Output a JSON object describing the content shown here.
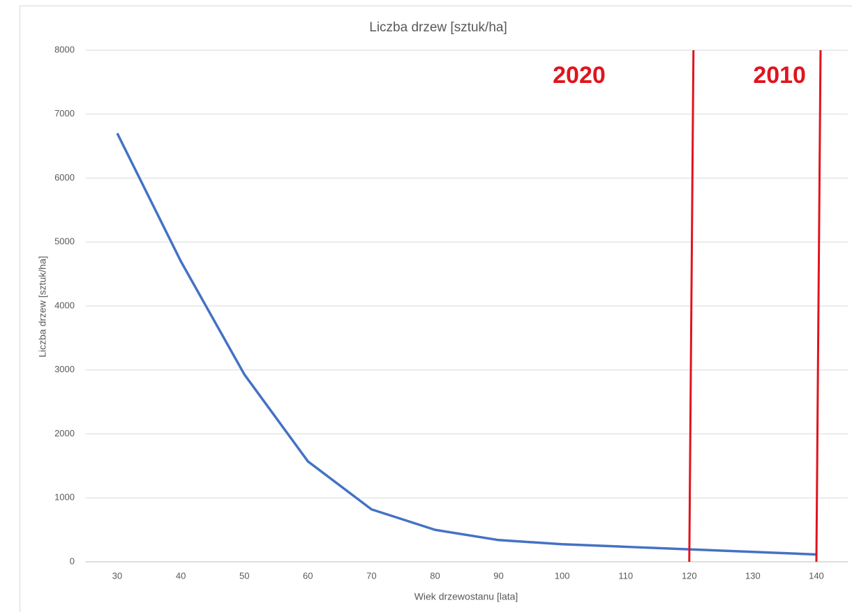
{
  "chart_data": {
    "type": "line",
    "title": "Liczba drzew [sztuk/ha]",
    "x_label": "Wiek drzewostanu [lata]",
    "y_label": "Liczba drzew [sztuk/ha]",
    "categories": [
      30,
      40,
      50,
      60,
      70,
      80,
      90,
      100,
      110,
      120,
      130,
      140
    ],
    "series": [
      {
        "name": "Liczba drzew [sztuk/ha]",
        "color": "#4472c4",
        "values": [
          6700,
          4700,
          2930,
          1570,
          820,
          500,
          340,
          275,
          235,
          195,
          155,
          115
        ]
      }
    ],
    "ylim": [
      0,
      8000
    ],
    "yticks": [
      0,
      1000,
      2000,
      3000,
      4000,
      5000,
      6000,
      7000,
      8000
    ],
    "grid": true,
    "annotations": [
      {
        "text": "2020",
        "x": 120,
        "color": "#e0141e"
      },
      {
        "text": "2010",
        "x": 140,
        "color": "#e0141e"
      }
    ]
  }
}
